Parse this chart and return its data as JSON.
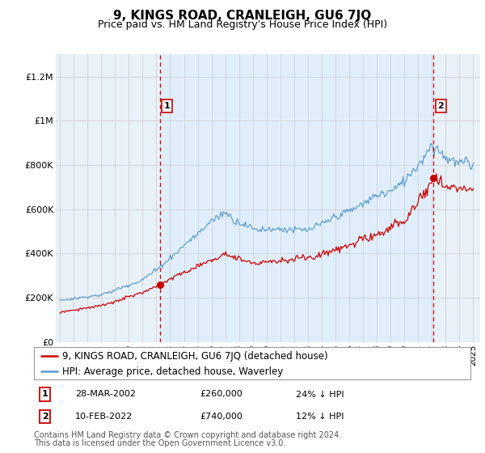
{
  "title": "9, KINGS ROAD, CRANLEIGH, GU6 7JQ",
  "subtitle": "Price paid vs. HM Land Registry's House Price Index (HPI)",
  "ylim": [
    0,
    1300000
  ],
  "yticks": [
    0,
    200000,
    400000,
    600000,
    800000,
    1000000,
    1200000
  ],
  "ytick_labels": [
    "£0",
    "£200K",
    "£400K",
    "£600K",
    "£800K",
    "£1M",
    "£1.2M"
  ],
  "hpi_color": "#5599cc",
  "price_color": "#cc0000",
  "vline_color": "#cc0000",
  "sale1_year": 2002.24,
  "sale1_price": 260000,
  "sale1_date": "28-MAR-2002",
  "sale1_pct": "24% ↓ HPI",
  "sale2_year": 2022.12,
  "sale2_price": 740000,
  "sale2_date": "10-FEB-2022",
  "sale2_pct": "12% ↓ HPI",
  "legend_label1": "9, KINGS ROAD, CRANLEIGH, GU6 7JQ (detached house)",
  "legend_label2": "HPI: Average price, detached house, Waverley",
  "footer1": "Contains HM Land Registry data © Crown copyright and database right 2024.",
  "footer2": "This data is licensed under the Open Government Licence v3.0.",
  "bg_color": "#ffffff",
  "chart_bg_color": "#e8f0f8",
  "fill_color": "#ddeeff",
  "grid_color": "#cccccc",
  "title_fontsize": 11,
  "subtitle_fontsize": 9,
  "tick_fontsize": 8,
  "legend_fontsize": 8.5,
  "footer_fontsize": 7,
  "xmin": 1994.7,
  "xmax": 2025.5
}
